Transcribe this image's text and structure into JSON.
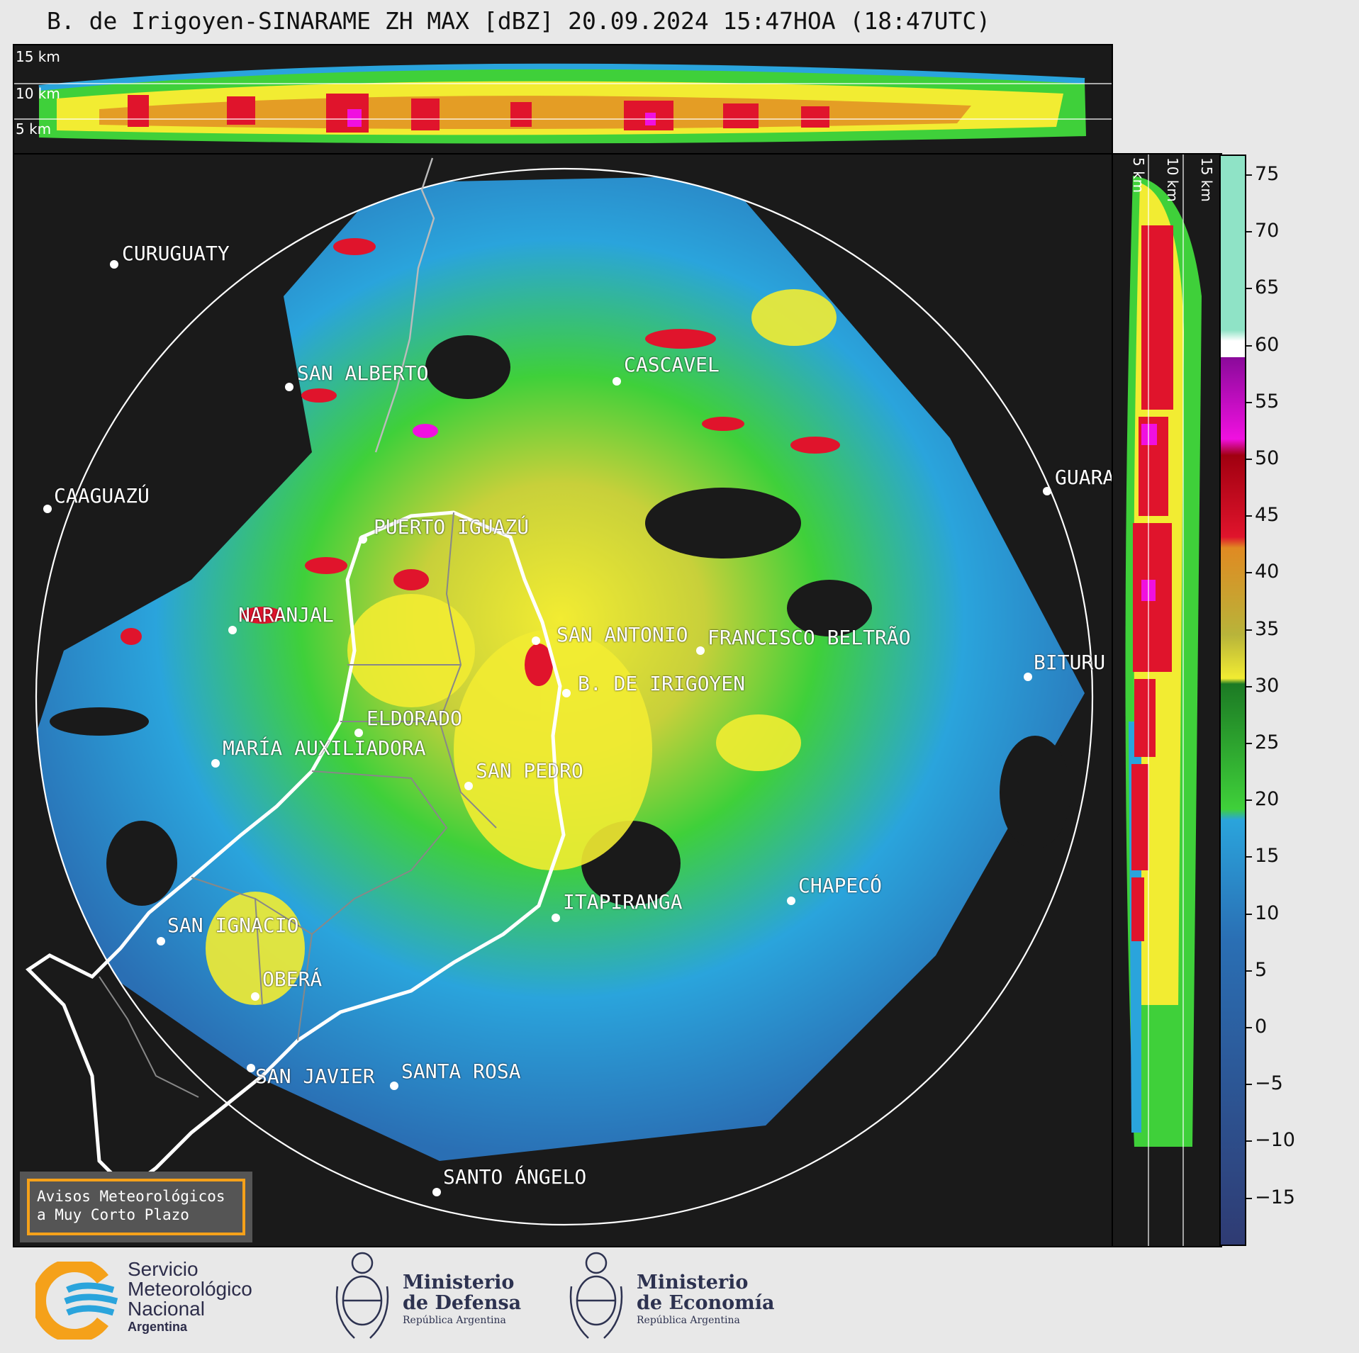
{
  "title": "B. de Irigoyen-SINARAME ZH MAX [dBZ] 20.09.2024 15:47HOA (18:47UTC)",
  "height_labels": {
    "h15": "15 km",
    "h10": "10 km",
    "h5": "5 km"
  },
  "cities": [
    {
      "name": "CURUGUATY"
    },
    {
      "name": "SAN ALBERTO"
    },
    {
      "name": "CASCAVEL"
    },
    {
      "name": "CAAGUAZÚ"
    },
    {
      "name": "GUARA"
    },
    {
      "name": "PUERTO IGUAZÚ"
    },
    {
      "name": "NARANJAL"
    },
    {
      "name": "SAN ANTONIO"
    },
    {
      "name": "FRANCISCO BELTRÃO"
    },
    {
      "name": "BITURU"
    },
    {
      "name": "B. DE IRIGOYEN"
    },
    {
      "name": "ELDORADO"
    },
    {
      "name": "MARÍA AUXILIADORA"
    },
    {
      "name": "SAN PEDRO"
    },
    {
      "name": "CHAPECÓ"
    },
    {
      "name": "ITAPIRANGA"
    },
    {
      "name": "SAN IGNACIO"
    },
    {
      "name": "OBERÁ"
    },
    {
      "name": "SAN JAVIER"
    },
    {
      "name": "SANTA ROSA"
    },
    {
      "name": "SANTO ÁNGELO"
    }
  ],
  "colorbar": {
    "unit": "dBZ",
    "ticks": [
      "75",
      "70",
      "65",
      "60",
      "55",
      "50",
      "45",
      "40",
      "35",
      "30",
      "25",
      "20",
      "15",
      "10",
      "5",
      "0",
      "−5",
      "−10",
      "−15"
    ],
    "colors": {
      "weak": "#2f3b73",
      "low": "#2a6fb4",
      "blue": "#2aa4dc",
      "green": "#3fd03a",
      "dkgreen": "#1c7a24",
      "yellow": "#f2ec32",
      "olive": "#b8b43a",
      "orange": "#e08a22",
      "red": "#e0142c",
      "dkred": "#a00010",
      "magenta": "#f010e0",
      "purple": "#8a0a9a",
      "white": "#ffffff",
      "mint": "#8fe3c6"
    }
  },
  "warning_box": {
    "line1": "Avisos Meteorológicos",
    "line2": "a Muy Corto Plazo"
  },
  "logos": {
    "smn": {
      "line1": "Servicio",
      "line2": "Meteorológico",
      "line3": "Nacional",
      "line4": "Argentina"
    },
    "defensa": {
      "line1": "Ministerio",
      "line2": "de Defensa",
      "line3": "República Argentina"
    },
    "economia": {
      "line1": "Ministerio",
      "line2": "de Economía",
      "line3": "República Argentina"
    }
  }
}
